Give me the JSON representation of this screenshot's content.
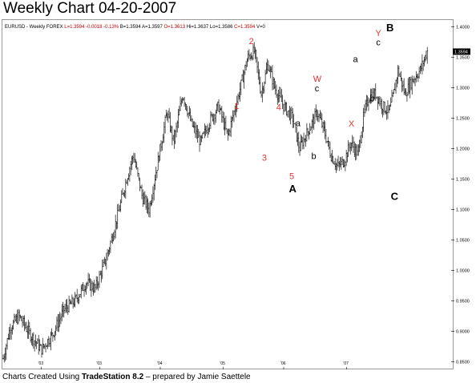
{
  "title": "Weekly Chart 04-20-2007",
  "footer": {
    "prefix": "Charts Created Using ",
    "software": "TradeStation 8.2",
    "suffix": " – prepared by Jamie Saettele"
  },
  "chart_data": {
    "type": "ohlc-bar",
    "symbol_header": {
      "symbol": "EURUSD",
      "period": "Weekly",
      "market": "FOREX",
      "last": "L=1.3594",
      "change": "-0.0018",
      "change_pct": "-0.13%",
      "bid": "B=1.3594",
      "ask": "A=1.3597",
      "open": "O=1.3613",
      "high": "Hi=1.3637",
      "low": "Lo=1.3586",
      "close": "C=1.3594",
      "volume": "V=0"
    },
    "last_price_tag": "1.3594",
    "x_tick_labels": [
      "'03",
      "'03",
      "'04",
      "'05",
      "'06",
      "'07"
    ],
    "y_tick_labels": [
      "1.4000",
      "1.3500",
      "1.3000",
      "1.2500",
      "1.2000",
      "1.1500",
      "1.1000",
      "1.0500",
      "1.0000",
      "0.9500",
      "0.9000",
      "0.8500"
    ],
    "ylim": [
      0.84,
      1.41
    ],
    "series_anchors": [
      [
        0.0,
        0.855
      ],
      [
        0.015,
        0.905
      ],
      [
        0.035,
        0.925
      ],
      [
        0.06,
        0.895
      ],
      [
        0.085,
        0.87
      ],
      [
        0.11,
        0.895
      ],
      [
        0.135,
        0.935
      ],
      [
        0.16,
        0.95
      ],
      [
        0.185,
        0.98
      ],
      [
        0.205,
        0.97
      ],
      [
        0.23,
        1.02
      ],
      [
        0.255,
        1.09
      ],
      [
        0.275,
        1.15
      ],
      [
        0.29,
        1.19
      ],
      [
        0.31,
        1.12
      ],
      [
        0.325,
        1.1
      ],
      [
        0.345,
        1.18
      ],
      [
        0.365,
        1.26
      ],
      [
        0.38,
        1.21
      ],
      [
        0.4,
        1.29
      ],
      [
        0.42,
        1.24
      ],
      [
        0.44,
        1.21
      ],
      [
        0.46,
        1.245
      ],
      [
        0.48,
        1.27
      ],
      [
        0.5,
        1.22
      ],
      [
        0.525,
        1.29
      ],
      [
        0.545,
        1.35
      ],
      [
        0.56,
        1.36
      ],
      [
        0.575,
        1.29
      ],
      [
        0.59,
        1.34
      ],
      [
        0.605,
        1.3
      ],
      [
        0.625,
        1.27
      ],
      [
        0.645,
        1.25
      ],
      [
        0.66,
        1.2
      ],
      [
        0.68,
        1.23
      ],
      [
        0.7,
        1.26
      ],
      [
        0.715,
        1.23
      ],
      [
        0.73,
        1.19
      ],
      [
        0.745,
        1.17
      ],
      [
        0.76,
        1.18
      ],
      [
        0.775,
        1.21
      ],
      [
        0.79,
        1.19
      ],
      [
        0.805,
        1.26
      ],
      [
        0.815,
        1.285
      ],
      [
        0.83,
        1.29
      ],
      [
        0.845,
        1.27
      ],
      [
        0.86,
        1.26
      ],
      [
        0.87,
        1.29
      ],
      [
        0.88,
        1.33
      ],
      [
        0.895,
        1.29
      ],
      [
        0.91,
        1.31
      ],
      [
        0.93,
        1.33
      ],
      [
        0.945,
        1.36
      ]
    ],
    "annotations": [
      {
        "text": "2",
        "x": 0.553,
        "y": 1.372,
        "color": "#e23434"
      },
      {
        "text": "1",
        "x": 0.52,
        "y": 1.265,
        "color": "#e23434"
      },
      {
        "text": "4",
        "x": 0.614,
        "y": 1.263,
        "color": "#e23434"
      },
      {
        "text": "3",
        "x": 0.582,
        "y": 1.18,
        "color": "#e23434"
      },
      {
        "text": "5",
        "x": 0.643,
        "y": 1.15,
        "color": "#e23434"
      },
      {
        "text": "W",
        "x": 0.7,
        "y": 1.31,
        "color": "#e23434"
      },
      {
        "text": "X",
        "x": 0.776,
        "y": 1.236,
        "color": "#e23434"
      },
      {
        "text": "Y",
        "x": 0.836,
        "y": 1.385,
        "color": "#e23434"
      },
      {
        "text": "c",
        "x": 0.699,
        "y": 1.294,
        "color": "#000000"
      },
      {
        "text": "a",
        "x": 0.657,
        "y": 1.237,
        "color": "#000000"
      },
      {
        "text": "b",
        "x": 0.692,
        "y": 1.183,
        "color": "#000000"
      },
      {
        "text": "a",
        "x": 0.785,
        "y": 1.342,
        "color": "#000000"
      },
      {
        "text": "b",
        "x": 0.822,
        "y": 1.278,
        "color": "#000000"
      },
      {
        "text": "c",
        "x": 0.836,
        "y": 1.37,
        "color": "#000000"
      },
      {
        "text": "A",
        "x": 0.645,
        "y": 1.128,
        "color": "#000000",
        "bold": true
      },
      {
        "text": "B",
        "x": 0.862,
        "y": 1.393,
        "color": "#000000",
        "bold": true
      },
      {
        "text": "C",
        "x": 0.872,
        "y": 1.116,
        "color": "#000000",
        "bold": true
      }
    ]
  }
}
